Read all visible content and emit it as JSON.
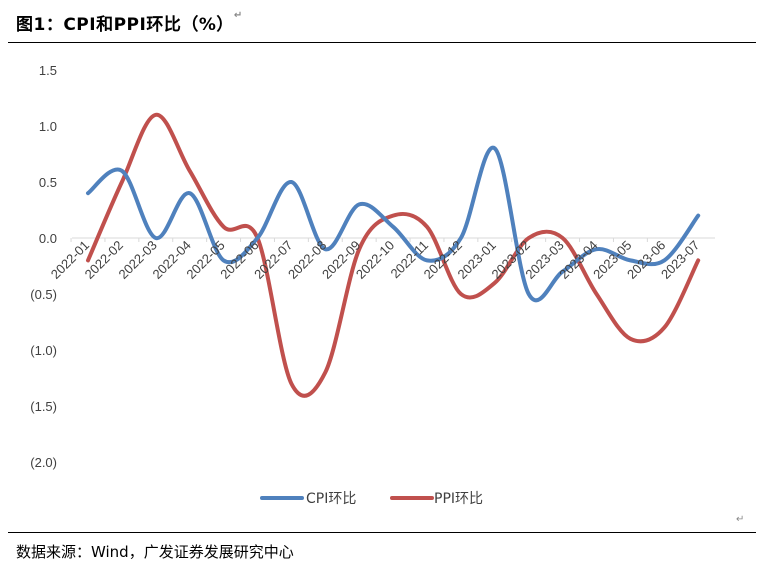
{
  "title": "图1：CPI和PPI环比（%）",
  "return_mark": "↵",
  "source": "数据来源：Wind，广发证券发展研究中心",
  "colors": {
    "cpi": "#4f81bd",
    "ppi": "#c0504d",
    "axis": "#d9d9d9",
    "text": "#404040"
  },
  "chart_data": {
    "type": "line",
    "title": "CPI和PPI环比（%）",
    "xlabel": "",
    "ylabel": "",
    "ylim": [
      -2.0,
      1.5
    ],
    "yticks": [
      1.5,
      1.0,
      0.5,
      0.0,
      -0.5,
      -1.0,
      -1.5,
      -2.0
    ],
    "ytick_labels": [
      "1.5",
      "1.0",
      "0.5",
      "0.0",
      "(0.5)",
      "(1.0)",
      "(1.5)",
      "(2.0)"
    ],
    "grid": false,
    "legend_position": "bottom",
    "categories": [
      "2022-01",
      "2022-02",
      "2022-03",
      "2022-04",
      "2022-05",
      "2022-06",
      "2022-07",
      "2022-08",
      "2022-09",
      "2022-10",
      "2022-11",
      "2022-12",
      "2023-01",
      "2023-02",
      "2023-03",
      "2023-04",
      "2023-05",
      "2023-06",
      "2023-07"
    ],
    "series": [
      {
        "name": "CPI环比",
        "values": [
          0.4,
          0.6,
          0.0,
          0.4,
          -0.2,
          0.0,
          0.5,
          -0.1,
          0.3,
          0.1,
          -0.2,
          0.0,
          0.8,
          -0.5,
          -0.3,
          -0.1,
          -0.2,
          -0.2,
          0.2
        ]
      },
      {
        "name": "PPI环比",
        "values": [
          -0.2,
          0.5,
          1.1,
          0.6,
          0.1,
          0.0,
          -1.3,
          -1.2,
          -0.1,
          0.2,
          0.1,
          -0.5,
          -0.4,
          0.0,
          0.0,
          -0.5,
          -0.9,
          -0.8,
          -0.2
        ]
      }
    ]
  }
}
